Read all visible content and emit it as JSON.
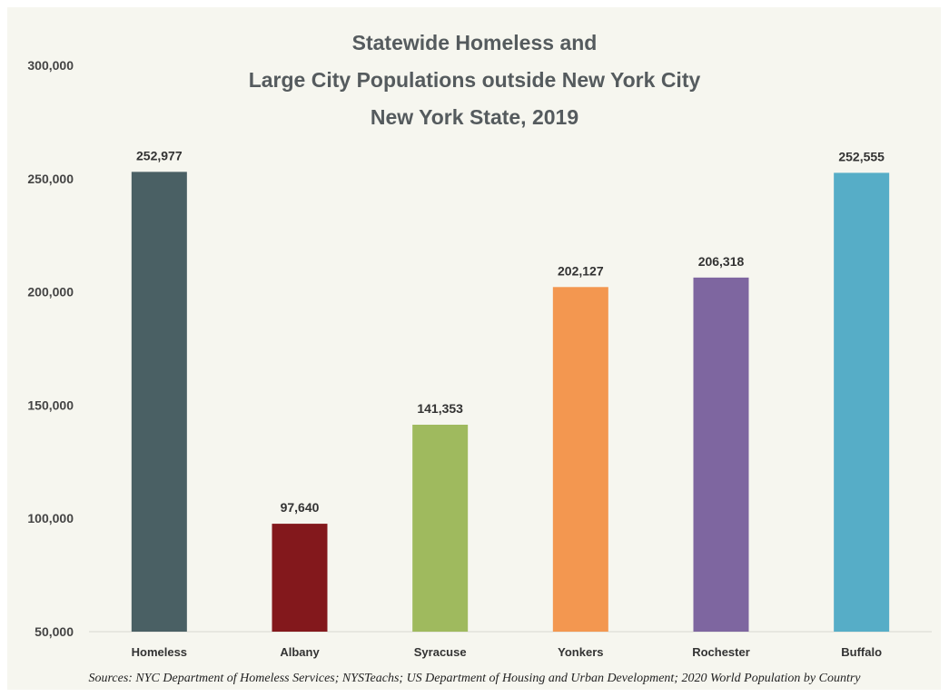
{
  "chart_data": {
    "type": "bar",
    "title_lines": [
      "Statewide Homeless and",
      "Large City Populations outside New York City",
      "New York State, 2019"
    ],
    "categories": [
      "Homeless",
      "Albany",
      "Syracuse",
      "Yonkers",
      "Rochester",
      "Buffalo"
    ],
    "values": [
      252977,
      97640,
      141353,
      202127,
      206318,
      252555
    ],
    "value_labels": [
      "252,977",
      "97,640",
      "141,353",
      "202,127",
      "206,318",
      "252,555"
    ],
    "colors": [
      "#4a6064",
      "#83181c",
      "#9fba5e",
      "#f39750",
      "#7e66a0",
      "#56adc7"
    ],
    "ylim": [
      50000,
      300000
    ],
    "yticks": [
      50000,
      100000,
      150000,
      200000,
      250000,
      300000
    ],
    "ytick_labels": [
      "50,000",
      "100,000",
      "150,000",
      "200,000",
      "250,000",
      "300,000"
    ],
    "grid": false,
    "legend": "none",
    "source": "Sources: NYC Department of Homeless Services; NYSTeachs; US Department of Housing and Urban Development; 2020 World Population by Country"
  }
}
